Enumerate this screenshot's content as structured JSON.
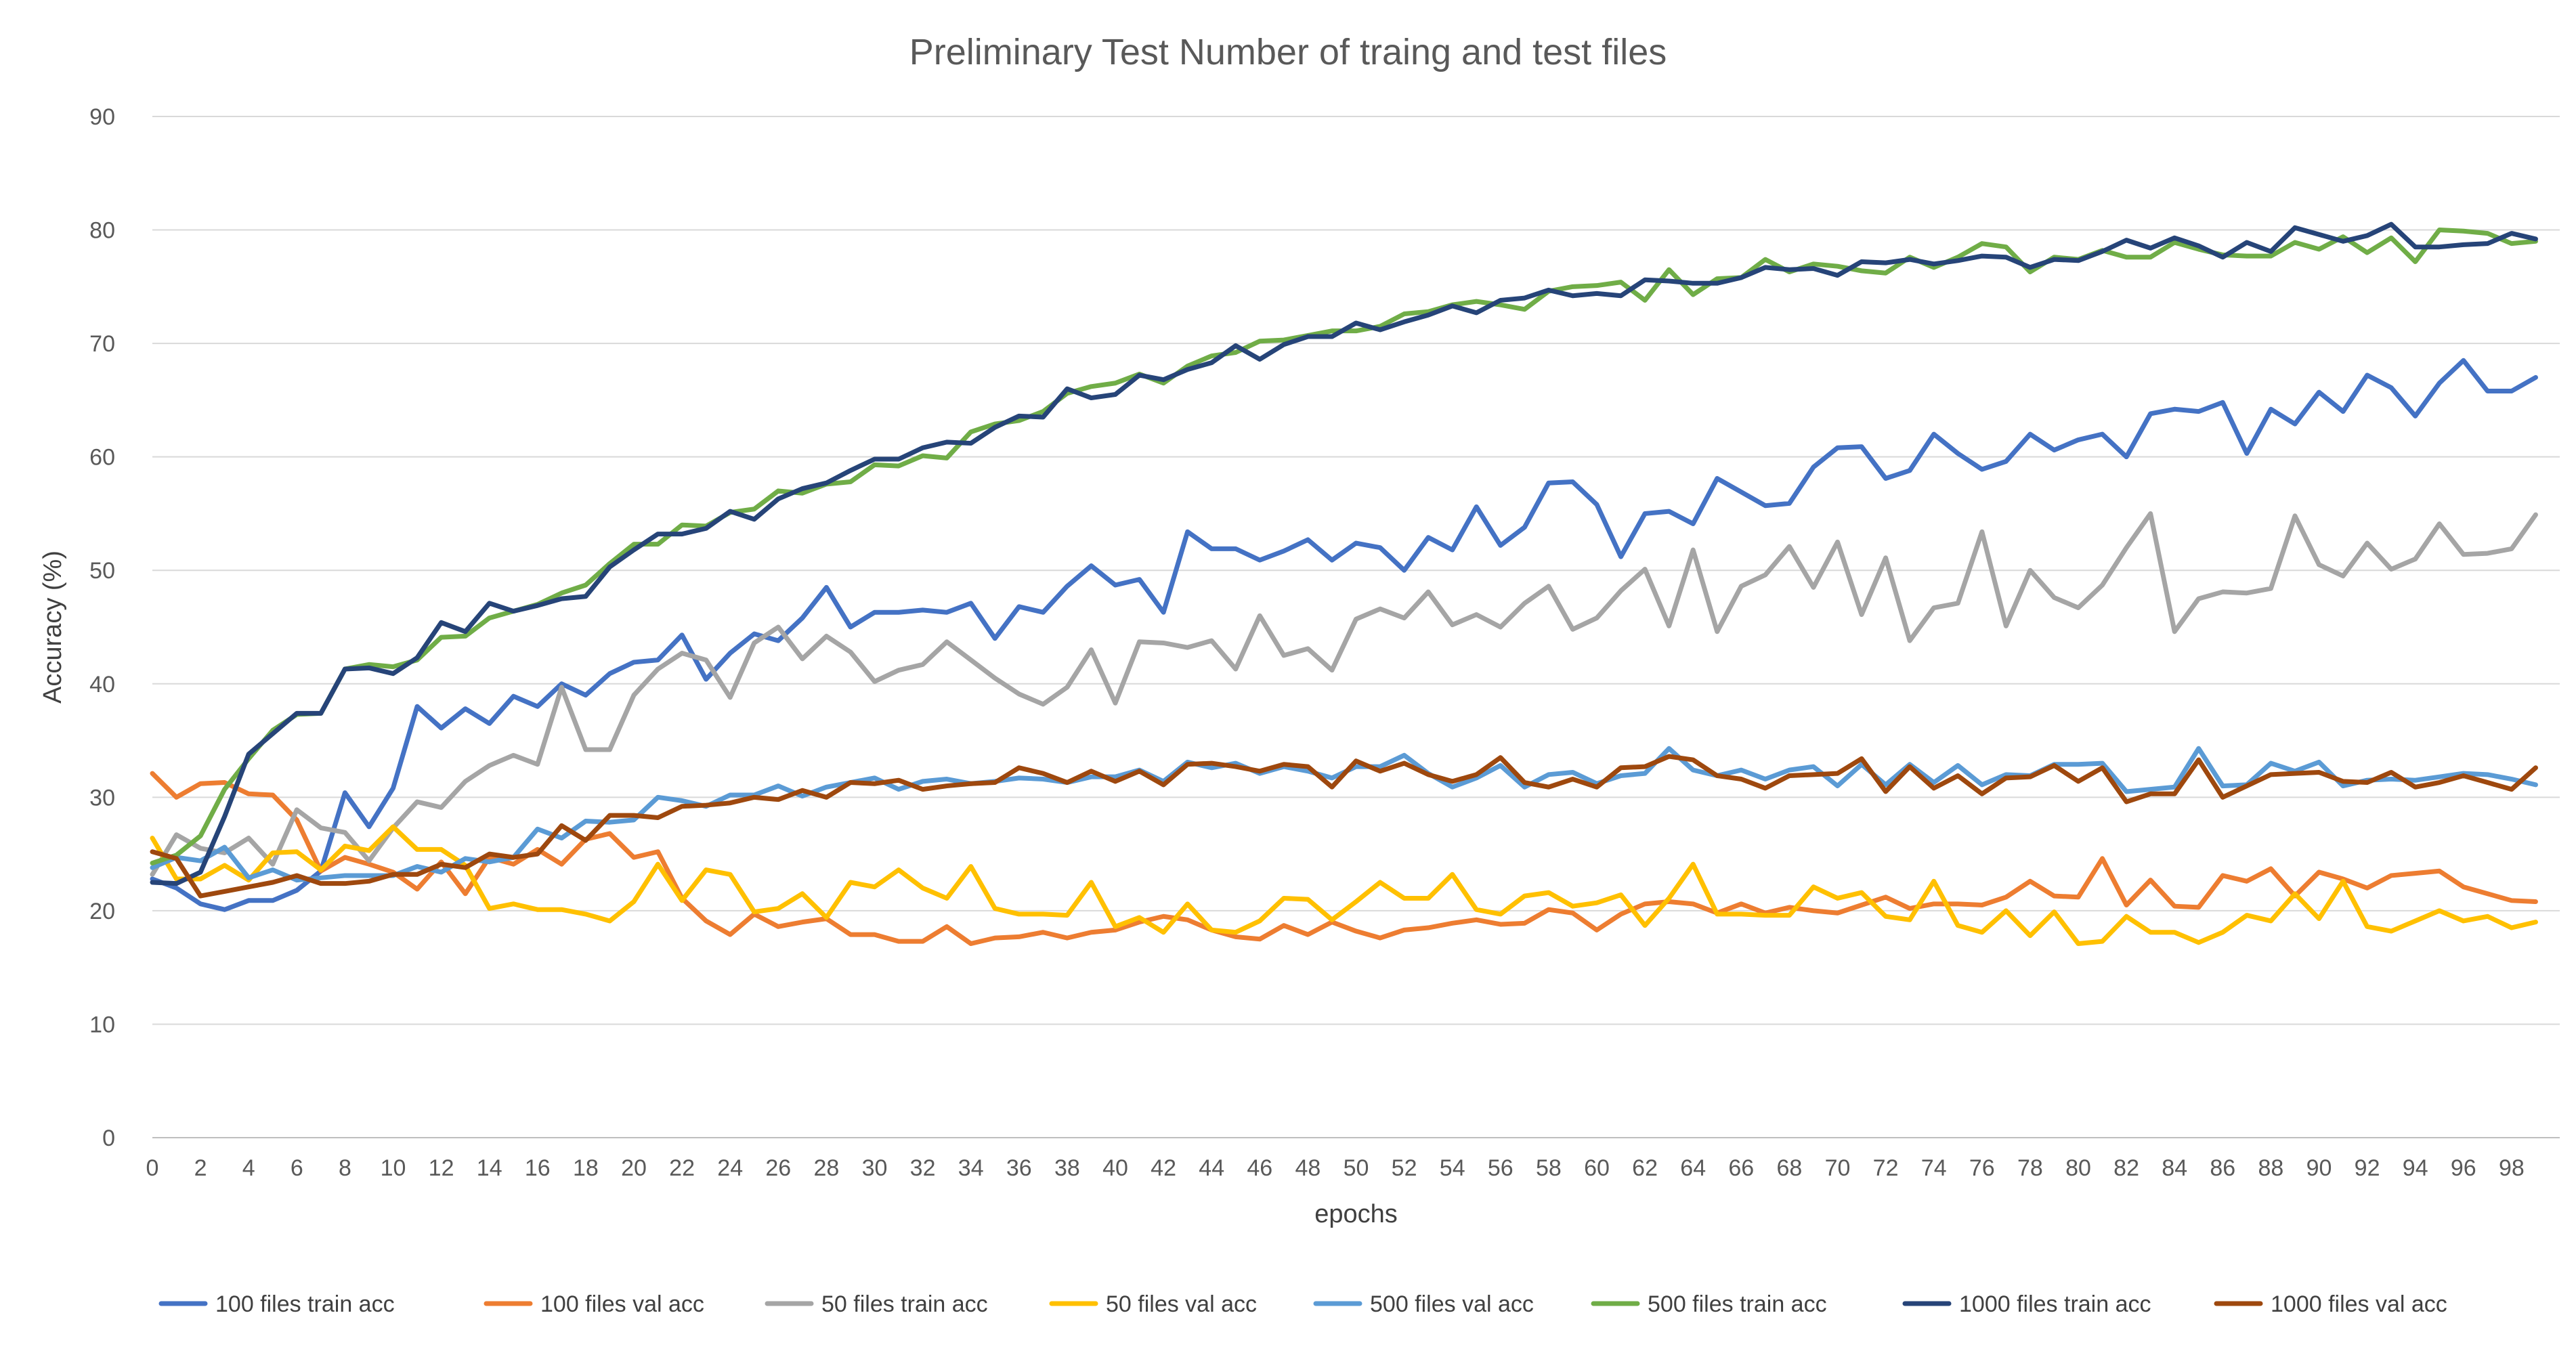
{
  "chart_data": {
    "type": "line",
    "title": "Preliminary Test Number of traing and test files",
    "xlabel": "epochs",
    "ylabel": "Accuracy (%)",
    "xlim": [
      0,
      100
    ],
    "ylim": [
      0,
      90
    ],
    "yticks": [
      0,
      10,
      20,
      30,
      40,
      50,
      60,
      70,
      80,
      90
    ],
    "xticks": [
      0,
      2,
      4,
      6,
      8,
      10,
      12,
      14,
      16,
      18,
      20,
      22,
      24,
      26,
      28,
      30,
      32,
      34,
      36,
      38,
      40,
      42,
      44,
      46,
      48,
      50,
      52,
      54,
      56,
      58,
      60,
      62,
      64,
      66,
      68,
      70,
      72,
      74,
      76,
      78,
      80,
      82,
      84,
      86,
      88,
      90,
      92,
      94,
      96,
      98
    ],
    "grid": "horizontal",
    "legend": "bottom",
    "series": [
      {
        "name": "100 files train acc",
        "color": "#4472C4",
        "values": [
          22.8,
          22.0,
          20.6,
          20.1,
          20.9,
          20.9,
          21.8,
          23.5,
          30.4,
          27.4,
          30.8,
          38.0,
          36.1,
          37.8,
          36.5,
          38.9,
          38.0,
          40.0,
          39.0,
          40.9,
          41.9,
          42.1,
          44.3,
          40.4,
          42.7,
          44.4,
          43.8,
          45.8,
          48.5,
          45.0,
          46.3,
          46.3,
          46.5,
          46.3,
          47.1,
          44.0,
          46.8,
          46.3,
          48.6,
          50.4,
          48.7,
          49.2,
          46.3,
          53.4,
          51.9,
          51.9,
          50.9,
          51.7,
          52.7,
          50.9,
          52.4,
          52.0,
          50.0,
          52.9,
          51.8,
          55.6,
          52.2,
          53.8,
          57.7,
          57.8,
          55.8,
          51.2,
          55.0,
          55.2,
          54.1,
          58.1,
          56.9,
          55.7,
          55.9,
          59.1,
          60.8,
          60.9,
          58.1,
          58.8,
          62.0,
          60.3,
          58.9,
          59.6,
          62.0,
          60.6,
          61.5,
          62.0,
          60.0,
          63.8,
          64.2,
          64.0,
          64.8,
          60.3,
          64.2,
          62.9,
          65.7,
          64.0,
          67.2,
          66.1,
          63.6,
          66.5,
          68.5,
          65.8,
          65.8,
          67.0
        ]
      },
      {
        "name": "100 files val acc",
        "color": "#ED7D31",
        "values": [
          32.1,
          30.0,
          31.2,
          31.3,
          30.3,
          30.2,
          28.0,
          23.5,
          24.7,
          24.1,
          23.4,
          21.9,
          24.3,
          21.5,
          24.7,
          24.1,
          25.4,
          24.1,
          26.3,
          26.8,
          24.7,
          25.2,
          21.1,
          19.1,
          17.9,
          19.7,
          18.6,
          19.0,
          19.3,
          17.9,
          17.9,
          17.3,
          17.3,
          18.6,
          17.1,
          17.6,
          17.7,
          18.1,
          17.6,
          18.1,
          18.3,
          19.0,
          19.5,
          19.2,
          18.3,
          17.7,
          17.5,
          18.7,
          17.9,
          19.0,
          18.2,
          17.6,
          18.3,
          18.5,
          18.9,
          19.2,
          18.8,
          18.9,
          20.1,
          19.8,
          18.3,
          19.7,
          20.6,
          20.8,
          20.6,
          19.8,
          20.6,
          19.8,
          20.3,
          20.0,
          19.8,
          20.5,
          21.2,
          20.2,
          20.6,
          20.6,
          20.5,
          21.2,
          22.6,
          21.3,
          21.2,
          24.6,
          20.5,
          22.7,
          20.4,
          20.3,
          23.1,
          22.6,
          23.7,
          21.3,
          23.4,
          22.8,
          22.0,
          23.1,
          23.3,
          23.5,
          22.1,
          21.5,
          20.9,
          20.8
        ]
      },
      {
        "name": "50 files train acc",
        "color": "#A5A5A5",
        "values": [
          23.2,
          26.7,
          25.5,
          25.1,
          26.4,
          24.1,
          28.9,
          27.3,
          26.9,
          24.4,
          27.3,
          29.6,
          29.1,
          31.4,
          32.8,
          33.7,
          32.9,
          39.7,
          34.2,
          34.2,
          39.0,
          41.3,
          42.7,
          42.1,
          38.8,
          43.6,
          45.0,
          42.2,
          44.2,
          42.8,
          40.2,
          41.2,
          41.7,
          43.7,
          42.1,
          40.5,
          39.1,
          38.2,
          39.7,
          43.0,
          38.3,
          43.7,
          43.6,
          43.2,
          43.8,
          41.3,
          46.0,
          42.5,
          43.1,
          41.2,
          45.7,
          46.6,
          45.8,
          48.1,
          45.2,
          46.1,
          45.0,
          47.1,
          48.6,
          44.8,
          45.8,
          48.2,
          50.1,
          45.1,
          51.8,
          44.6,
          48.6,
          49.6,
          52.1,
          48.5,
          52.5,
          46.1,
          51.1,
          43.8,
          46.7,
          47.1,
          53.4,
          45.1,
          50.0,
          47.6,
          46.7,
          48.7,
          52.0,
          55.0,
          44.6,
          47.5,
          48.1,
          48.0,
          48.4,
          54.8,
          50.5,
          49.5,
          52.4,
          50.1,
          51.0,
          54.1,
          51.4,
          51.5,
          51.9,
          54.9
        ]
      },
      {
        "name": "50 files val acc",
        "color": "#FFC000",
        "values": [
          26.4,
          22.8,
          22.8,
          24.0,
          22.7,
          25.1,
          25.2,
          23.6,
          25.7,
          25.3,
          27.4,
          25.4,
          25.4,
          24.0,
          20.2,
          20.6,
          20.1,
          20.1,
          19.7,
          19.1,
          20.8,
          24.1,
          20.9,
          23.6,
          23.2,
          19.9,
          20.2,
          21.5,
          19.4,
          22.5,
          22.1,
          23.6,
          22.0,
          21.1,
          23.9,
          20.2,
          19.7,
          19.7,
          19.6,
          22.5,
          18.6,
          19.4,
          18.1,
          20.6,
          18.3,
          18.1,
          19.1,
          21.1,
          21.0,
          19.2,
          20.8,
          22.5,
          21.1,
          21.1,
          23.2,
          20.1,
          19.7,
          21.3,
          21.6,
          20.4,
          20.7,
          21.4,
          18.7,
          21.1,
          24.1,
          19.7,
          19.7,
          19.6,
          19.6,
          22.1,
          21.1,
          21.6,
          19.5,
          19.2,
          22.6,
          18.7,
          18.1,
          20.0,
          17.8,
          19.9,
          17.1,
          17.3,
          19.5,
          18.1,
          18.1,
          17.2,
          18.1,
          19.6,
          19.1,
          21.5,
          19.3,
          22.6,
          18.6,
          18.2,
          19.1,
          20.0,
          19.1,
          19.5,
          18.5,
          19.0
        ]
      },
      {
        "name": "500 files val acc",
        "color": "#5B9BD5",
        "values": [
          23.8,
          24.7,
          24.4,
          25.6,
          22.9,
          23.6,
          22.7,
          22.9,
          23.1,
          23.1,
          23.1,
          23.9,
          23.4,
          24.6,
          24.3,
          24.7,
          27.2,
          26.4,
          27.9,
          27.8,
          28.0,
          30.0,
          29.7,
          29.2,
          30.2,
          30.2,
          31.0,
          30.1,
          30.9,
          31.3,
          31.7,
          30.7,
          31.4,
          31.6,
          31.2,
          31.4,
          31.7,
          31.6,
          31.3,
          31.8,
          31.8,
          32.4,
          31.4,
          33.1,
          32.6,
          33.0,
          32.1,
          32.7,
          32.3,
          31.7,
          32.7,
          32.7,
          33.7,
          32.1,
          30.9,
          31.7,
          32.8,
          30.9,
          32.0,
          32.2,
          31.2,
          31.9,
          32.1,
          34.3,
          32.4,
          31.9,
          32.4,
          31.6,
          32.4,
          32.7,
          31.0,
          32.9,
          31.1,
          32.9,
          31.3,
          32.8,
          31.1,
          32.0,
          31.9,
          32.9,
          32.9,
          33.0,
          30.5,
          30.7,
          30.9,
          34.3,
          31.0,
          31.1,
          33.0,
          32.3,
          33.1,
          31.0,
          31.5,
          31.6,
          31.5,
          31.8,
          32.1,
          32.0,
          31.6,
          31.1
        ]
      },
      {
        "name": "500 files train acc",
        "color": "#70AD47",
        "values": [
          24.2,
          24.9,
          26.6,
          30.7,
          33.4,
          35.9,
          37.3,
          37.4,
          41.3,
          41.7,
          41.5,
          42.1,
          44.1,
          44.2,
          45.8,
          46.4,
          47.0,
          48.0,
          48.7,
          50.6,
          52.3,
          52.3,
          54.0,
          53.9,
          55.1,
          55.4,
          57.0,
          56.8,
          57.6,
          57.8,
          59.3,
          59.2,
          60.1,
          59.9,
          62.2,
          62.9,
          63.2,
          64.0,
          65.6,
          66.2,
          66.5,
          67.3,
          66.5,
          68.0,
          68.9,
          69.2,
          70.2,
          70.3,
          70.7,
          71.1,
          71.1,
          71.5,
          72.6,
          72.8,
          73.4,
          73.7,
          73.4,
          73.0,
          74.6,
          75.0,
          75.1,
          75.4,
          73.8,
          76.5,
          74.3,
          75.7,
          75.8,
          77.4,
          76.3,
          77.0,
          76.8,
          76.4,
          76.2,
          77.6,
          76.7,
          77.6,
          78.8,
          78.5,
          76.3,
          77.6,
          77.4,
          78.2,
          77.6,
          77.6,
          78.9,
          78.3,
          77.8,
          77.7,
          77.7,
          78.9,
          78.3,
          79.4,
          78.0,
          79.3,
          77.2,
          80.0,
          79.9,
          79.7,
          78.8,
          79.0
        ]
      },
      {
        "name": "1000 files train acc",
        "color": "#264478",
        "values": [
          22.5,
          22.4,
          23.4,
          28.3,
          33.8,
          35.6,
          37.4,
          37.4,
          41.3,
          41.4,
          40.9,
          42.3,
          45.4,
          44.6,
          47.1,
          46.4,
          46.9,
          47.5,
          47.7,
          50.3,
          51.8,
          53.2,
          53.2,
          53.7,
          55.2,
          54.5,
          56.3,
          57.2,
          57.7,
          58.8,
          59.8,
          59.8,
          60.8,
          61.3,
          61.2,
          62.6,
          63.6,
          63.5,
          66.0,
          65.2,
          65.5,
          67.2,
          66.8,
          67.7,
          68.3,
          69.8,
          68.6,
          69.9,
          70.6,
          70.6,
          71.8,
          71.2,
          71.9,
          72.5,
          73.3,
          72.7,
          73.8,
          74.0,
          74.7,
          74.2,
          74.4,
          74.2,
          75.6,
          75.5,
          75.3,
          75.3,
          75.8,
          76.7,
          76.5,
          76.6,
          76.0,
          77.2,
          77.1,
          77.4,
          77.0,
          77.3,
          77.7,
          77.6,
          76.7,
          77.4,
          77.3,
          78.1,
          79.1,
          78.4,
          79.3,
          78.6,
          77.6,
          78.9,
          78.1,
          80.2,
          79.6,
          79.0,
          79.5,
          80.5,
          78.5,
          78.5,
          78.7,
          78.8,
          79.7,
          79.2
        ]
      },
      {
        "name": "1000 files val acc",
        "color": "#9E480E",
        "values": [
          25.2,
          24.6,
          21.3,
          21.7,
          22.1,
          22.5,
          23.1,
          22.4,
          22.4,
          22.6,
          23.2,
          23.2,
          24.1,
          23.8,
          25.0,
          24.7,
          25.0,
          27.5,
          26.2,
          28.4,
          28.4,
          28.2,
          29.2,
          29.3,
          29.5,
          30.0,
          29.8,
          30.6,
          30.0,
          31.3,
          31.2,
          31.5,
          30.7,
          31.0,
          31.2,
          31.3,
          32.6,
          32.1,
          31.3,
          32.3,
          31.4,
          32.3,
          31.1,
          32.9,
          33.0,
          32.7,
          32.3,
          32.9,
          32.7,
          30.9,
          33.2,
          32.3,
          33.0,
          32.0,
          31.4,
          32.0,
          33.5,
          31.3,
          30.9,
          31.6,
          30.9,
          32.6,
          32.7,
          33.6,
          33.3,
          31.9,
          31.6,
          30.8,
          31.9,
          32.0,
          32.1,
          33.4,
          30.5,
          32.7,
          30.8,
          31.9,
          30.3,
          31.7,
          31.8,
          32.8,
          31.4,
          32.6,
          29.6,
          30.3,
          30.3,
          33.3,
          30.0,
          31.0,
          32.0,
          32.1,
          32.2,
          31.4,
          31.3,
          32.2,
          30.9,
          31.3,
          31.9,
          31.3,
          30.7,
          32.6
        ]
      }
    ]
  }
}
